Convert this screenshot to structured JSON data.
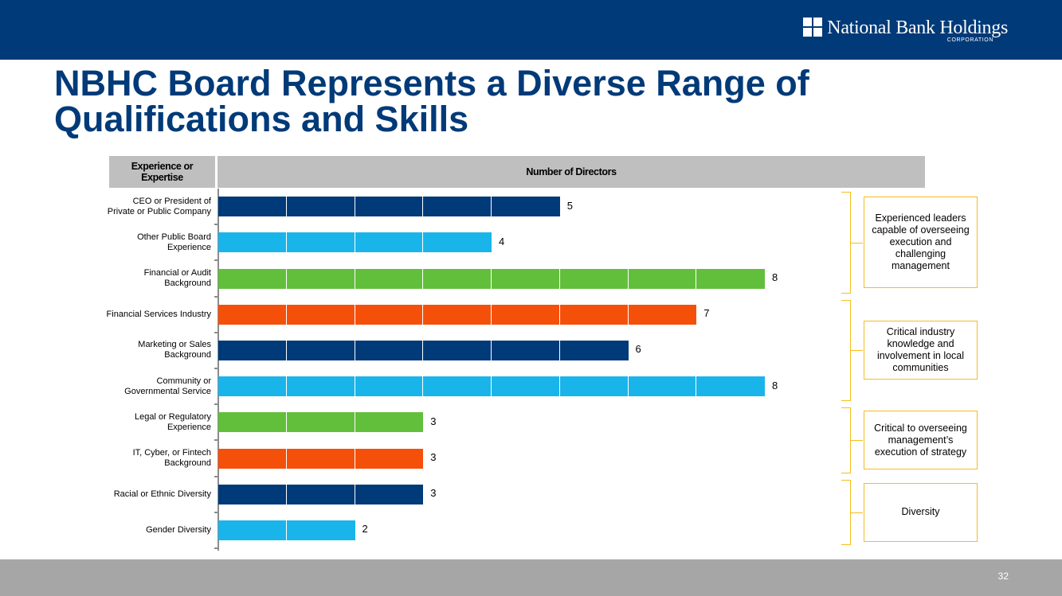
{
  "header": {
    "logo_name": "National Bank Holdings",
    "logo_sub": "CORPORATION",
    "colors": {
      "bar_background": "#003a78",
      "title": "#003a78",
      "accent": "#f5bd1f"
    }
  },
  "page": {
    "title": "NBHC Board Represents a Diverse Range of Qualifications and Skills",
    "page_number": "32"
  },
  "table_header": {
    "left": "Experience or Expertise",
    "right": "Number of Directors"
  },
  "chart_data": {
    "type": "bar",
    "orientation": "horizontal",
    "title": "Number of Directors",
    "ylabel": "Experience or Expertise",
    "xlim": [
      0,
      9
    ],
    "gridlines": false,
    "segmented_per_unit": true,
    "categories": [
      "CEO or President of Private or Public Company",
      "Other Public Board Experience",
      "Financial or Audit Background",
      "Financial Services Industry",
      "Marketing or Sales Background",
      "Community or Governmental Service",
      "Legal or Regulatory Experience",
      "IT, Cyber, or Fintech Background",
      "Racial or Ethnic Diversity",
      "Gender Diversity"
    ],
    "values": [
      5,
      4,
      8,
      7,
      6,
      8,
      3,
      3,
      3,
      2
    ],
    "colors": [
      "#003a78",
      "#19b5ea",
      "#62bf3b",
      "#f5500a",
      "#003a78",
      "#19b5ea",
      "#62bf3b",
      "#f5500a",
      "#003a78",
      "#19b5ea"
    ]
  },
  "groups": [
    {
      "label": "Experienced leaders capable of overseeing execution and challenging management",
      "from": 0,
      "to": 2
    },
    {
      "label": "Critical industry knowledge and involvement in local communities",
      "from": 3,
      "to": 5
    },
    {
      "label": "Critical to overseeing management’s execution of strategy",
      "from": 6,
      "to": 7
    },
    {
      "label": "Diversity",
      "from": 8,
      "to": 9
    }
  ]
}
